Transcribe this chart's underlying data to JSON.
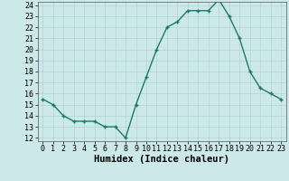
{
  "x": [
    0,
    1,
    2,
    3,
    4,
    5,
    6,
    7,
    8,
    9,
    10,
    11,
    12,
    13,
    14,
    15,
    16,
    17,
    18,
    19,
    20,
    21,
    22,
    23
  ],
  "y": [
    15.5,
    15.0,
    14.0,
    13.5,
    13.5,
    13.5,
    13.0,
    13.0,
    12.0,
    15.0,
    17.5,
    20.0,
    22.0,
    22.5,
    23.5,
    23.5,
    23.5,
    24.5,
    23.0,
    21.0,
    18.0,
    16.5,
    16.0,
    15.5
  ],
  "xlabel": "Humidex (Indice chaleur)",
  "ylim": [
    12,
    24
  ],
  "xlim": [
    -0.5,
    23.5
  ],
  "yticks": [
    12,
    13,
    14,
    15,
    16,
    17,
    18,
    19,
    20,
    21,
    22,
    23,
    24
  ],
  "xticks": [
    0,
    1,
    2,
    3,
    4,
    5,
    6,
    7,
    8,
    9,
    10,
    11,
    12,
    13,
    14,
    15,
    16,
    17,
    18,
    19,
    20,
    21,
    22,
    23
  ],
  "line_color": "#1a7a6a",
  "marker": "+",
  "bg_color": "#cde8e8",
  "grid_color": "#b0d4d4",
  "xlabel_fontsize": 7.5,
  "tick_fontsize": 6,
  "linewidth": 1.0,
  "markersize": 3.5
}
